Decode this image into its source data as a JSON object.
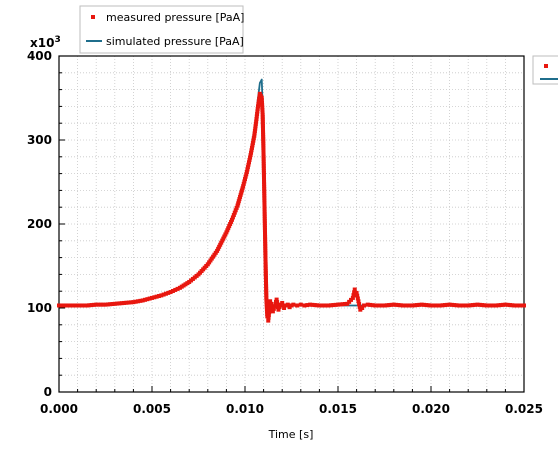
{
  "chart_data": {
    "type": "line",
    "xlabel": "Time [s]",
    "ylabel": "",
    "y_multiplier": "x10",
    "y_multiplier_exp": "3",
    "xlim": [
      0,
      0.025
    ],
    "ylim": [
      0,
      400
    ],
    "x_ticks": [
      "0.000",
      "0.005",
      "0.010",
      "0.015",
      "0.020",
      "0.025"
    ],
    "x_tick_values": [
      0,
      0.005,
      0.01,
      0.015,
      0.02,
      0.025
    ],
    "y_ticks": [
      "0",
      "100",
      "200",
      "300",
      "400"
    ],
    "y_tick_values": [
      0,
      100,
      200,
      300,
      400
    ],
    "grid": true,
    "legend_placement": "top-left, outside above plot",
    "series": [
      {
        "name": "measured pressure [PaA]",
        "style": "markers",
        "color": "#e8170f",
        "x": [
          0.0,
          0.0005,
          0.001,
          0.0015,
          0.002,
          0.0025,
          0.003,
          0.0035,
          0.004,
          0.0045,
          0.005,
          0.0055,
          0.006,
          0.0065,
          0.007,
          0.0075,
          0.008,
          0.0085,
          0.009,
          0.0093,
          0.0096,
          0.0099,
          0.0101,
          0.0103,
          0.0105,
          0.0106,
          0.0107,
          0.0108,
          0.0109,
          0.01095,
          0.011,
          0.01105,
          0.0111,
          0.01115,
          0.0112,
          0.01125,
          0.0113,
          0.01135,
          0.0114,
          0.0115,
          0.0116,
          0.0117,
          0.0118,
          0.0119,
          0.012,
          0.0121,
          0.0122,
          0.0123,
          0.0124,
          0.0125,
          0.0126,
          0.0128,
          0.013,
          0.0132,
          0.0135,
          0.014,
          0.0145,
          0.015,
          0.0155,
          0.0158,
          0.0159,
          0.016,
          0.0161,
          0.0162,
          0.0163,
          0.0164,
          0.0166,
          0.017,
          0.0175,
          0.018,
          0.0185,
          0.019,
          0.0195,
          0.02,
          0.0205,
          0.021,
          0.0215,
          0.022,
          0.0225,
          0.023,
          0.0235,
          0.024,
          0.0245,
          0.025
        ],
        "y": [
          103,
          103,
          103,
          103,
          104,
          104,
          105,
          106,
          107,
          109,
          112,
          115,
          119,
          124,
          131,
          140,
          152,
          168,
          190,
          205,
          222,
          245,
          262,
          282,
          305,
          322,
          340,
          355,
          350,
          330,
          280,
          220,
          160,
          110,
          90,
          85,
          95,
          108,
          105,
          96,
          102,
          110,
          98,
          104,
          106,
          100,
          103,
          104,
          101,
          103,
          104,
          103,
          104,
          103,
          104,
          103,
          103,
          104,
          105,
          112,
          122,
          118,
          108,
          98,
          100,
          103,
          104,
          103,
          103,
          104,
          103,
          103,
          104,
          103,
          103,
          104,
          103,
          103,
          104,
          103,
          103,
          104,
          103,
          103
        ]
      },
      {
        "name": "simulated pressure [PaA]",
        "style": "line",
        "color": "#1f6e8c",
        "x": [
          0.0,
          0.001,
          0.002,
          0.0025,
          0.003,
          0.0035,
          0.004,
          0.0045,
          0.005,
          0.0055,
          0.006,
          0.0065,
          0.007,
          0.0075,
          0.008,
          0.0085,
          0.009,
          0.0093,
          0.0096,
          0.0099,
          0.0101,
          0.0103,
          0.0105,
          0.0106,
          0.0107,
          0.0108,
          0.0109,
          0.01095,
          0.011,
          0.01105,
          0.0111,
          0.01115,
          0.0112,
          0.01125,
          0.0113,
          0.0114,
          0.0115,
          0.0116,
          0.0117,
          0.0118,
          0.0119,
          0.012,
          0.0121,
          0.0122,
          0.0124,
          0.0126,
          0.013,
          0.0135,
          0.015,
          0.017,
          0.02,
          0.0225,
          0.025
        ],
        "y": [
          103,
          103,
          104,
          104,
          105,
          106,
          107,
          109,
          112,
          115,
          119,
          124,
          131,
          140,
          152,
          168,
          190,
          205,
          224,
          248,
          266,
          288,
          312,
          330,
          350,
          368,
          372,
          340,
          280,
          200,
          140,
          108,
          98,
          94,
          97,
          105,
          100,
          102,
          104,
          102,
          103,
          104,
          103,
          103,
          103,
          103,
          103,
          103,
          103,
          103,
          103,
          103,
          103
        ]
      }
    ]
  },
  "series_icon_names": [
    "red-square-marker-icon",
    "teal-line-icon"
  ]
}
